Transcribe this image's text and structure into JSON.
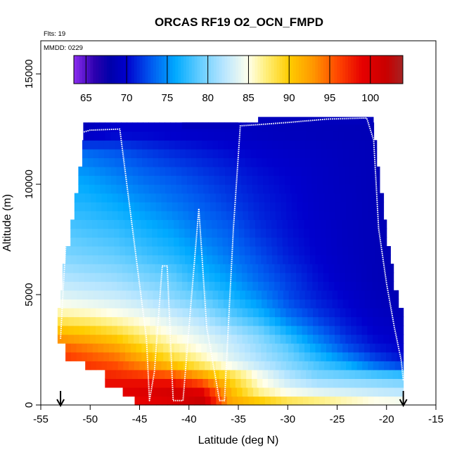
{
  "chart_data": {
    "type": "heatmap",
    "title": "ORCAS RF19 O2_OCN_FMPD",
    "xlabel": "Latitude (deg N)",
    "ylabel": "Altitude (m)",
    "xlim": [
      -55,
      -15
    ],
    "ylim": [
      0,
      16500
    ],
    "x_ticks": [
      -55,
      -50,
      -45,
      -40,
      -35,
      -30,
      -25,
      -20,
      -15
    ],
    "y_ticks": [
      0,
      5000,
      10000,
      15000
    ],
    "annotations": {
      "flights": "Flts: 19",
      "date": "MMDD: 0229"
    },
    "colorbar": {
      "range": [
        63.5,
        104
      ],
      "ticks": [
        65,
        70,
        75,
        80,
        85,
        90,
        95,
        100
      ],
      "placement": "top-inside"
    },
    "field": {
      "lat_min": -53.3,
      "lat_max": -18.3,
      "rows": [
        {
          "alt": 200,
          "lat_start": -45.5,
          "lat_end": -18.3,
          "values": [
            97.0,
            97.5,
            98.0,
            99.0,
            100.0,
            102.0,
            92.0,
            90.0,
            88.0,
            87.0,
            86.0,
            85.0,
            84.5
          ]
        },
        {
          "alt": 700,
          "lat_start": -46.7,
          "lat_end": -18.3,
          "values": [
            99.0,
            99.0,
            99.5,
            100.0,
            101.0,
            99.0,
            91.0,
            86.0,
            84.0,
            83.0,
            82.5,
            82.0,
            81.5
          ]
        },
        {
          "alt": 1300,
          "lat_start": -48.5,
          "lat_end": -18.3,
          "values": [
            98.0,
            98.0,
            97.5,
            97.0,
            96.0,
            93.0,
            89.0,
            85.0,
            82.0,
            80.0,
            79.5,
            79.0,
            78.5
          ]
        },
        {
          "alt": 1900,
          "lat_start": -50.5,
          "lat_end": -18.3,
          "values": [
            97.5,
            96.5,
            95.5,
            93.0,
            90.0,
            87.0,
            84.0,
            82.0,
            80.0,
            78.0,
            76.0,
            73.0,
            71.0
          ]
        },
        {
          "alt": 2500,
          "lat_start": -52.5,
          "lat_end": -18.3,
          "values": [
            96.0,
            94.5,
            93.0,
            90.0,
            87.0,
            85.0,
            83.0,
            81.0,
            79.0,
            76.0,
            73.0,
            71.0,
            70.0
          ]
        },
        {
          "alt": 3200,
          "lat_start": -53.3,
          "lat_end": -18.3,
          "values": [
            92.0,
            91.0,
            89.5,
            87.0,
            85.0,
            83.5,
            82.0,
            80.0,
            77.0,
            74.0,
            71.5,
            70.0,
            69.5
          ]
        },
        {
          "alt": 4000,
          "lat_start": -53.3,
          "lat_end": -18.3,
          "values": [
            87.0,
            86.5,
            85.5,
            84.5,
            83.0,
            81.5,
            79.0,
            77.0,
            74.0,
            72.0,
            70.5,
            69.5,
            69.0
          ]
        },
        {
          "alt": 4800,
          "lat_start": -53.0,
          "lat_end": -18.8,
          "values": [
            84.0,
            83.5,
            83.0,
            82.0,
            80.5,
            79.0,
            77.0,
            75.0,
            72.5,
            71.0,
            70.0,
            69.0,
            68.5
          ]
        },
        {
          "alt": 5700,
          "lat_start": -52.8,
          "lat_end": -19.3,
          "values": [
            82.0,
            81.5,
            81.0,
            80.0,
            79.0,
            77.0,
            75.5,
            73.5,
            72.0,
            70.5,
            69.5,
            68.8,
            68.5
          ]
        },
        {
          "alt": 6800,
          "lat_start": -52.5,
          "lat_end": -19.6,
          "values": [
            80.0,
            79.5,
            79.0,
            78.0,
            77.0,
            75.5,
            74.0,
            72.5,
            71.0,
            70.0,
            69.3,
            68.8,
            68.5
          ]
        },
        {
          "alt": 8000,
          "lat_start": -52.0,
          "lat_end": -20.0,
          "values": [
            78.5,
            78.0,
            77.5,
            76.5,
            75.5,
            74.0,
            73.0,
            71.5,
            70.5,
            69.8,
            69.2,
            68.8,
            68.5
          ]
        },
        {
          "alt": 9200,
          "lat_start": -51.6,
          "lat_end": -20.3,
          "values": [
            77.0,
            76.8,
            76.0,
            75.0,
            74.0,
            73.0,
            72.0,
            71.0,
            70.3,
            69.6,
            69.2,
            68.8,
            68.6
          ]
        },
        {
          "alt": 10400,
          "lat_start": -51.2,
          "lat_end": -20.7,
          "values": [
            76.0,
            75.5,
            74.5,
            73.5,
            72.8,
            72.0,
            71.2,
            70.5,
            70.0,
            69.5,
            69.1,
            68.8,
            68.6
          ]
        },
        {
          "alt": 11500,
          "lat_start": -50.8,
          "lat_end": -21.0,
          "values": [
            74.0,
            73.5,
            72.8,
            72.0,
            71.3,
            70.8,
            70.3,
            69.9,
            69.6,
            69.3,
            69.0,
            68.8,
            68.7
          ]
        },
        {
          "alt": 12300,
          "lat_start": -50.7,
          "lat_end": -21.3,
          "values": [
            66.0,
            69.0,
            70.0,
            70.0,
            69.8,
            69.6,
            69.4,
            69.2,
            69.0,
            68.9,
            68.8,
            68.7,
            68.6
          ]
        }
      ],
      "top_patches": [
        {
          "lat_start": -40.7,
          "lat_end": -35.0,
          "alt_bottom": 12500,
          "alt_top": 12800
        },
        {
          "lat_start": -33.0,
          "lat_end": -21.3,
          "alt_bottom": 12700,
          "alt_top": 13050
        }
      ]
    },
    "flight_track": {
      "lat": [
        -53.0,
        -52.7,
        -52.3,
        -51.9,
        -51.5,
        -51.3,
        -50.8,
        -50.0,
        -47.0,
        -46.0,
        -44.3,
        -44.0,
        -43.5,
        -42.7,
        -42.2,
        -41.6,
        -40.6,
        -40.0,
        -39.0,
        -38.2,
        -36.9,
        -36.4,
        -35.5,
        -34.8,
        -33.0,
        -30.0,
        -26.0,
        -22.0,
        -21.3,
        -20.8,
        -20.0,
        -19.2,
        -18.5,
        -18.3
      ],
      "alt": [
        3000,
        5500,
        8500,
        10500,
        11500,
        12100,
        12350,
        12450,
        12500,
        9000,
        3000,
        200,
        1500,
        6300,
        6300,
        200,
        200,
        3500,
        8900,
        3500,
        200,
        200,
        8000,
        12650,
        12700,
        12800,
        12950,
        13000,
        12000,
        8000,
        5500,
        3500,
        2000,
        1100
      ]
    },
    "flight_ends": [
      -53.0,
      -18.3
    ]
  }
}
